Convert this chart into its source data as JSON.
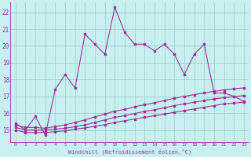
{
  "xlabel": "Windchill (Refroidissement éolien,°C)",
  "xlim": [
    -0.5,
    23.5
  ],
  "ylim": [
    14.3,
    22.6
  ],
  "yticks": [
    15,
    16,
    17,
    18,
    19,
    20,
    21,
    22
  ],
  "xticks": [
    0,
    1,
    2,
    3,
    4,
    5,
    6,
    7,
    8,
    9,
    10,
    11,
    12,
    13,
    14,
    15,
    16,
    17,
    18,
    19,
    20,
    21,
    22,
    23
  ],
  "bg_color": "#c8f0f0",
  "grid_color": "#99cccc",
  "line_color": "#993399",
  "line1_x": [
    0,
    1,
    2,
    3,
    4,
    5,
    6,
    7,
    8,
    9,
    10,
    11,
    12,
    13,
    14,
    15,
    16,
    17,
    18,
    19,
    20,
    21,
    22,
    23
  ],
  "line1_y": [
    15.4,
    15.0,
    15.8,
    14.7,
    17.4,
    18.3,
    17.5,
    20.7,
    20.1,
    19.5,
    22.3,
    20.8,
    20.1,
    20.1,
    19.7,
    20.1,
    19.5,
    18.3,
    19.5,
    20.1,
    17.2,
    17.2,
    17.0,
    16.7
  ],
  "line2_x": [
    0,
    1,
    2,
    3,
    4,
    5,
    6,
    7,
    8,
    9,
    10,
    11,
    12,
    13,
    14,
    15,
    16,
    17,
    18,
    19,
    20,
    21,
    22,
    23
  ],
  "line2_y": [
    15.0,
    14.85,
    14.85,
    14.85,
    14.9,
    14.95,
    15.05,
    15.12,
    15.22,
    15.32,
    15.45,
    15.55,
    15.65,
    15.75,
    15.85,
    15.95,
    16.05,
    16.15,
    16.25,
    16.35,
    16.45,
    16.55,
    16.6,
    16.65
  ],
  "line3_x": [
    0,
    1,
    2,
    3,
    4,
    5,
    6,
    7,
    8,
    9,
    10,
    11,
    12,
    13,
    14,
    15,
    16,
    17,
    18,
    19,
    20,
    21,
    22,
    23
  ],
  "line3_y": [
    15.15,
    15.0,
    15.0,
    15.0,
    15.05,
    15.1,
    15.2,
    15.3,
    15.45,
    15.6,
    15.75,
    15.85,
    15.98,
    16.1,
    16.2,
    16.32,
    16.45,
    16.55,
    16.65,
    16.75,
    16.85,
    16.92,
    16.98,
    17.05
  ],
  "line4_x": [
    0,
    1,
    2,
    3,
    4,
    5,
    6,
    7,
    8,
    9,
    10,
    11,
    12,
    13,
    14,
    15,
    16,
    17,
    18,
    19,
    20,
    21,
    22,
    23
  ],
  "line4_y": [
    15.3,
    15.15,
    15.15,
    15.1,
    15.2,
    15.3,
    15.45,
    15.6,
    15.78,
    15.95,
    16.12,
    16.22,
    16.38,
    16.5,
    16.62,
    16.75,
    16.88,
    17.0,
    17.1,
    17.2,
    17.3,
    17.38,
    17.45,
    17.5
  ]
}
